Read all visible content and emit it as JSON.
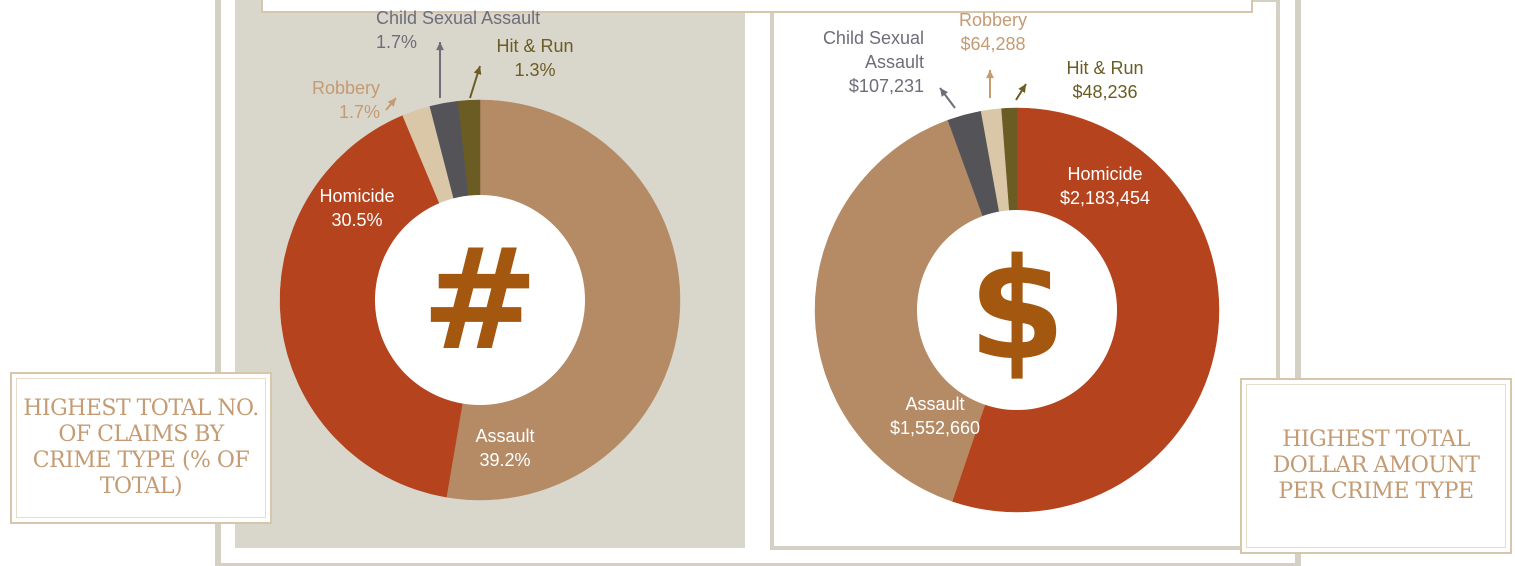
{
  "chart_data": [
    {
      "type": "pie",
      "title": "HIGHEST TOTAL NO. OF CLAIMS BY CRIME TYPE (% OF TOTAL)",
      "center_icon": "#",
      "categories": [
        "Assault",
        "Homicide",
        "Robbery",
        "Child Sexual Assault",
        "Hit & Run"
      ],
      "values": [
        39.2,
        30.5,
        1.7,
        1.7,
        1.3
      ],
      "value_labels": [
        "39.2%",
        "30.5%",
        "1.7%",
        "1.7%",
        "1.3%"
      ],
      "colors": [
        "#b58b66",
        "#b5431e",
        "#d9c7a8",
        "#545458",
        "#6b5c24"
      ]
    },
    {
      "type": "pie",
      "title": "HIGHEST TOTAL DOLLAR AMOUNT PER CRIME TYPE",
      "center_icon": "$",
      "categories": [
        "Homicide",
        "Assault",
        "Child Sexual Assault",
        "Robbery",
        "Hit & Run"
      ],
      "values": [
        2183454,
        1552660,
        107231,
        64288,
        48236
      ],
      "value_labels": [
        "$2,183,454",
        "$1,552,660",
        "$107,231",
        "$64,288",
        "$48,236"
      ],
      "colors": [
        "#b5431e",
        "#b58b66",
        "#545458",
        "#d9c7a8",
        "#6b5c24"
      ]
    }
  ]
}
